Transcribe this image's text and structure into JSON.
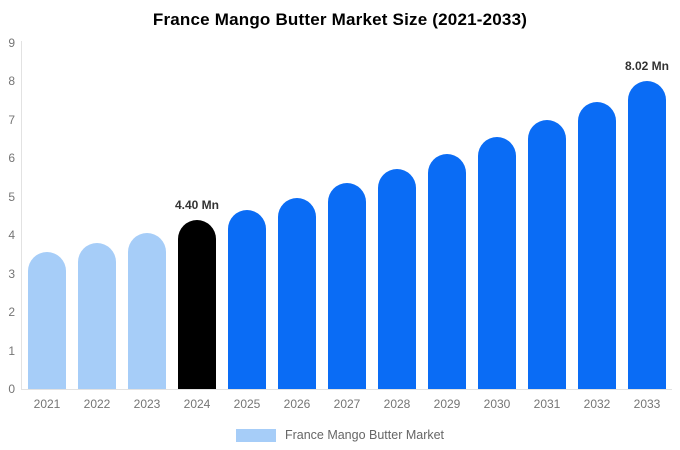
{
  "chart": {
    "title": "France Mango Butter Market Size (2021-2033)"
  },
  "legend": {
    "label": "France Mango Butter Market",
    "swatch_color": "#a6cdf8"
  },
  "colors": {
    "historical_bar": "#a6cdf8",
    "base_year_bar": "#000000",
    "forecast_bar": "#0a6cf5",
    "axis_line": "#e2e2e2",
    "tick_text": "#757575",
    "annotation_text": "#333333"
  },
  "chart_data": {
    "type": "bar",
    "title": "France Mango Butter Market Size (2021-2033)",
    "xlabel": "",
    "ylabel": "",
    "unit": "Mn",
    "ylim": [
      0,
      9
    ],
    "yticks": [
      0,
      1,
      2,
      3,
      4,
      5,
      6,
      7,
      8,
      9
    ],
    "grid": false,
    "legend_position": "bottom",
    "series_name": "France Mango Butter Market",
    "categories": [
      "2021",
      "2022",
      "2023",
      "2024",
      "2025",
      "2026",
      "2027",
      "2028",
      "2029",
      "2030",
      "2031",
      "2032",
      "2033"
    ],
    "values": [
      3.56,
      3.81,
      4.07,
      4.4,
      4.66,
      4.97,
      5.36,
      5.71,
      6.12,
      6.55,
      7.0,
      7.47,
      8.02
    ],
    "bar_colors": [
      "#a6cdf8",
      "#a6cdf8",
      "#a6cdf8",
      "#000000",
      "#0a6cf5",
      "#0a6cf5",
      "#0a6cf5",
      "#0a6cf5",
      "#0a6cf5",
      "#0a6cf5",
      "#0a6cf5",
      "#0a6cf5",
      "#0a6cf5"
    ],
    "annotations": {
      "2024": "4.40 Mn",
      "2033": "8.02 Mn"
    }
  }
}
